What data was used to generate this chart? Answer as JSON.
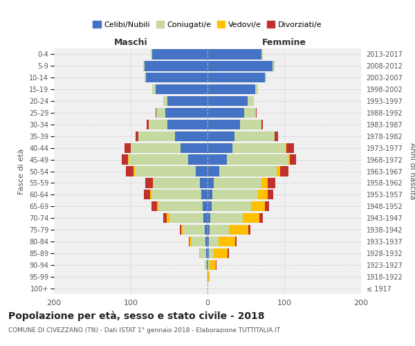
{
  "age_groups": [
    "100+",
    "95-99",
    "90-94",
    "85-89",
    "80-84",
    "75-79",
    "70-74",
    "65-69",
    "60-64",
    "55-59",
    "50-54",
    "45-49",
    "40-44",
    "35-39",
    "30-34",
    "25-29",
    "20-24",
    "15-19",
    "10-14",
    "5-9",
    "0-4"
  ],
  "birth_years": [
    "≤ 1917",
    "1918-1922",
    "1923-1927",
    "1928-1932",
    "1933-1937",
    "1938-1942",
    "1943-1947",
    "1948-1952",
    "1953-1957",
    "1958-1962",
    "1963-1967",
    "1968-1972",
    "1973-1977",
    "1978-1982",
    "1983-1987",
    "1988-1992",
    "1993-1997",
    "1998-2002",
    "2003-2007",
    "2008-2012",
    "2013-2017"
  ],
  "maschi": {
    "celibi": [
      0,
      0,
      1,
      2,
      3,
      4,
      5,
      6,
      8,
      10,
      15,
      25,
      35,
      42,
      52,
      55,
      52,
      68,
      80,
      82,
      72
    ],
    "coniugati": [
      0,
      1,
      3,
      8,
      18,
      28,
      45,
      58,
      65,
      60,
      80,
      78,
      65,
      48,
      25,
      12,
      6,
      4,
      2,
      2,
      2
    ],
    "vedovi": [
      0,
      0,
      0,
      1,
      2,
      2,
      3,
      2,
      2,
      1,
      1,
      1,
      0,
      0,
      0,
      0,
      0,
      0,
      0,
      0,
      0
    ],
    "divorziati": [
      0,
      0,
      0,
      0,
      1,
      2,
      5,
      7,
      8,
      10,
      10,
      8,
      8,
      4,
      2,
      1,
      0,
      0,
      0,
      0,
      0
    ]
  },
  "femmine": {
    "nubili": [
      0,
      0,
      1,
      2,
      2,
      3,
      4,
      5,
      6,
      8,
      15,
      25,
      32,
      35,
      42,
      48,
      52,
      62,
      75,
      85,
      70
    ],
    "coniugate": [
      0,
      1,
      2,
      6,
      12,
      25,
      42,
      52,
      60,
      62,
      75,
      80,
      70,
      52,
      28,
      15,
      8,
      4,
      2,
      2,
      2
    ],
    "vedove": [
      0,
      2,
      8,
      18,
      22,
      25,
      22,
      18,
      12,
      8,
      5,
      2,
      1,
      0,
      0,
      0,
      0,
      0,
      0,
      0,
      0
    ],
    "divorziate": [
      0,
      0,
      1,
      2,
      2,
      3,
      4,
      5,
      8,
      10,
      10,
      8,
      10,
      5,
      2,
      1,
      0,
      0,
      0,
      0,
      0
    ]
  },
  "colors": {
    "celibi_nubili": "#4472c4",
    "coniugati": "#c5d9a0",
    "vedovi": "#ffc000",
    "divorziati": "#c0312e"
  },
  "title": "Popolazione per età, sesso e stato civile - 2018",
  "subtitle": "COMUNE DI CIVEZZANO (TN) - Dati ISTAT 1° gennaio 2018 - Elaborazione TUTTITALIA.IT",
  "xlabel_left": "Maschi",
  "xlabel_right": "Femmine",
  "ylabel_left": "Fasce di età",
  "ylabel_right": "Anni di nascita",
  "xlim": 200,
  "legend_labels": [
    "Celibi/Nubili",
    "Coniugati/e",
    "Vedovi/e",
    "Divorziati/e"
  ],
  "bg_color": "#f0f0f0",
  "bar_height": 0.85
}
